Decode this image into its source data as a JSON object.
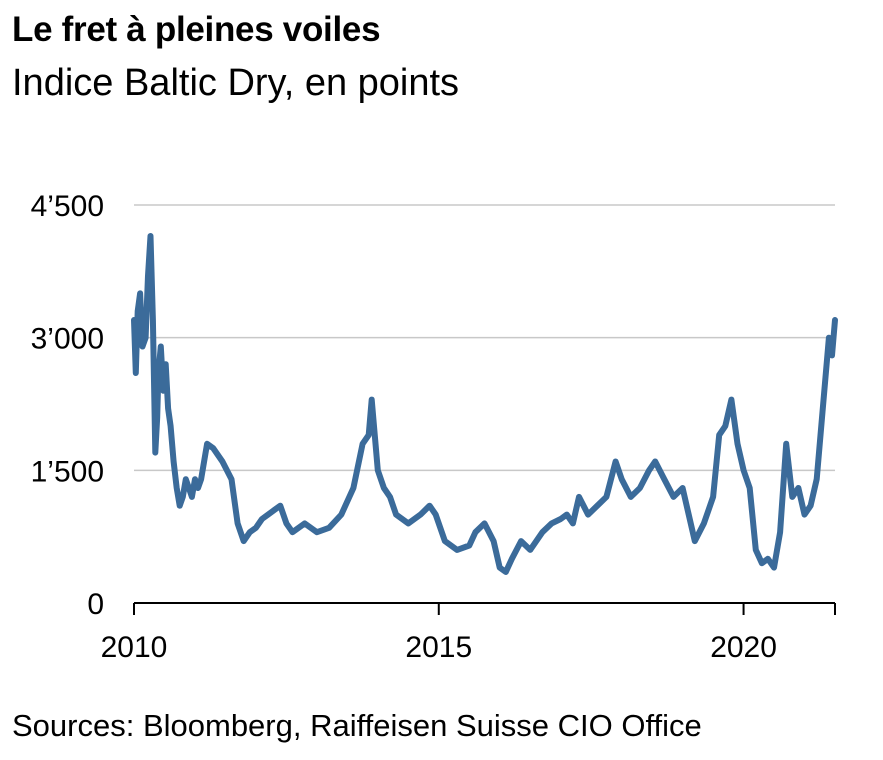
{
  "title": "Le fret à pleines voiles",
  "subtitle": "Indice Baltic Dry, en points",
  "source": "Sources: Bloomberg, Raiffeisen Suisse CIO Office",
  "chart_data": {
    "type": "line",
    "ylim": [
      0,
      4500
    ],
    "xlim": [
      2010.0,
      2021.5
    ],
    "yticks": [
      0,
      1500,
      3000,
      4500
    ],
    "ytick_labels": [
      "0",
      "1’500",
      "3’000",
      "4’500"
    ],
    "xticks": [
      2010,
      2015,
      2020
    ],
    "xtick_labels": [
      "2010",
      "2015",
      "2020"
    ],
    "grid": "horizontal",
    "line_color": "#3b6b9a",
    "series": [
      {
        "x": [
          2010.0,
          2010.03,
          2010.06,
          2010.1,
          2010.14,
          2010.19,
          2010.23,
          2010.27,
          2010.31,
          2010.35,
          2010.38,
          2010.4,
          2010.44,
          2010.48,
          2010.52,
          2010.56,
          2010.6,
          2010.65,
          2010.7,
          2010.75,
          2010.8,
          2010.85,
          2010.9,
          2010.95,
          2011.0,
          2011.05,
          2011.1,
          2011.2,
          2011.3,
          2011.45,
          2011.6,
          2011.7,
          2011.8,
          2011.9,
          2012.0,
          2012.1,
          2012.2,
          2012.3,
          2012.4,
          2012.5,
          2012.6,
          2012.7,
          2012.8,
          2012.9,
          2013.0,
          2013.2,
          2013.4,
          2013.6,
          2013.75,
          2013.85,
          2013.9,
          2014.0,
          2014.1,
          2014.2,
          2014.3,
          2014.5,
          2014.7,
          2014.85,
          2014.95,
          2015.1,
          2015.3,
          2015.5,
          2015.6,
          2015.75,
          2015.9,
          2016.0,
          2016.1,
          2016.2,
          2016.35,
          2016.5,
          2016.7,
          2016.85,
          2017.0,
          2017.1,
          2017.2,
          2017.3,
          2017.45,
          2017.6,
          2017.75,
          2017.9,
          2018.0,
          2018.15,
          2018.3,
          2018.45,
          2018.55,
          2018.7,
          2018.85,
          2019.0,
          2019.1,
          2019.2,
          2019.35,
          2019.5,
          2019.6,
          2019.7,
          2019.8,
          2019.9,
          2020.0,
          2020.1,
          2020.2,
          2020.3,
          2020.4,
          2020.5,
          2020.6,
          2020.7,
          2020.8,
          2020.9,
          2021.0,
          2021.1,
          2021.2,
          2021.3,
          2021.4,
          2021.45,
          2021.5
        ],
        "y": [
          3200,
          2600,
          3300,
          3500,
          2900,
          3000,
          3700,
          4150,
          3200,
          1700,
          2100,
          2600,
          2900,
          2400,
          2700,
          2200,
          2000,
          1600,
          1300,
          1100,
          1200,
          1400,
          1300,
          1200,
          1400,
          1300,
          1400,
          1800,
          1750,
          1600,
          1400,
          900,
          700,
          800,
          850,
          950,
          1000,
          1050,
          1100,
          900,
          800,
          850,
          900,
          850,
          800,
          850,
          1000,
          1300,
          1800,
          1900,
          2300,
          1500,
          1300,
          1200,
          1000,
          900,
          1000,
          1100,
          1000,
          700,
          600,
          650,
          800,
          900,
          700,
          400,
          350,
          500,
          700,
          600,
          800,
          900,
          950,
          1000,
          900,
          1200,
          1000,
          1100,
          1200,
          1600,
          1400,
          1200,
          1300,
          1500,
          1600,
          1400,
          1200,
          1300,
          1000,
          700,
          900,
          1200,
          1900,
          2000,
          2300,
          1800,
          1500,
          1300,
          600,
          450,
          500,
          400,
          800,
          1800,
          1200,
          1300,
          1000,
          1100,
          1400,
          2200,
          3000,
          2800,
          3200
        ]
      }
    ]
  }
}
